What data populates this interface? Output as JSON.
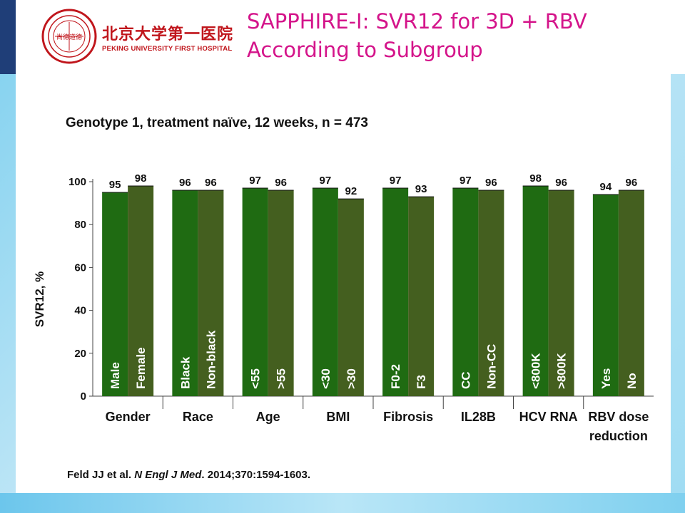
{
  "header": {
    "logo_chinese": "北京大学第一医院",
    "logo_english": "PEKING UNIVERSITY FIRST HOSPITAL",
    "seal_text": "尚德道德",
    "title_line1": "SAPPHIRE-I: SVR12 for 3D + RBV",
    "title_line2": "According to Subgroup"
  },
  "colors": {
    "title": "#d4148a",
    "logo": "#c0161c",
    "bar_dark": "#1f6b12",
    "bar_olive": "#445f1f",
    "header_bar": "#1f3e78"
  },
  "citation": {
    "authors": "Feld JJ et al. ",
    "journal": "N Engl J Med",
    "details": ". 2014;370:1594-1603."
  },
  "chart_data": {
    "type": "bar",
    "title": "Genotype 1, treatment naïve, 12 weeks, n = 473",
    "ylabel": "SVR12, %",
    "xlabel": "",
    "ylim": [
      0,
      100
    ],
    "yticks": [
      0,
      20,
      40,
      60,
      80,
      100
    ],
    "grid": false,
    "legend": "none",
    "groups": [
      {
        "category": "Gender",
        "bars": [
          {
            "label": "Male",
            "value": 95
          },
          {
            "label": "Female",
            "value": 98
          }
        ]
      },
      {
        "category": "Race",
        "bars": [
          {
            "label": "Black",
            "value": 96
          },
          {
            "label": "Non-black",
            "value": 96
          }
        ]
      },
      {
        "category": "Age",
        "bars": [
          {
            "label": "<55",
            "value": 97
          },
          {
            "label": ">55",
            "value": 96
          }
        ]
      },
      {
        "category": "BMI",
        "bars": [
          {
            "label": "<30",
            "value": 97
          },
          {
            "label": ">30",
            "value": 92
          }
        ]
      },
      {
        "category": "Fibrosis",
        "bars": [
          {
            "label": "F0-2",
            "value": 97
          },
          {
            "label": "F3",
            "value": 93
          }
        ]
      },
      {
        "category": "IL28B",
        "bars": [
          {
            "label": "CC",
            "value": 97
          },
          {
            "label": "Non-CC",
            "value": 96
          }
        ]
      },
      {
        "category": "HCV RNA",
        "bars": [
          {
            "label": "<800K",
            "value": 98
          },
          {
            "label": ">800K",
            "value": 96
          }
        ]
      },
      {
        "category": "RBV dose reduction",
        "bars": [
          {
            "label": "Yes",
            "value": 94
          },
          {
            "label": "No",
            "value": 96
          }
        ]
      }
    ]
  }
}
